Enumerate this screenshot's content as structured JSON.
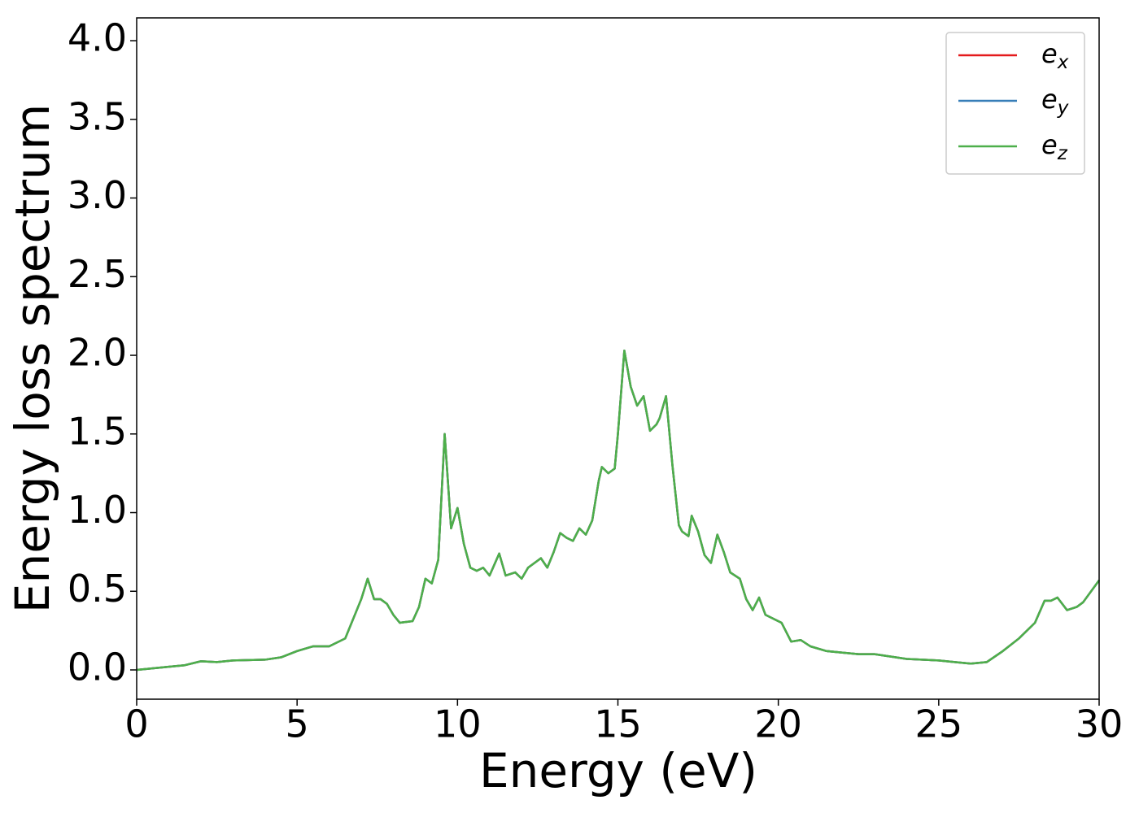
{
  "chart_data": {
    "type": "line",
    "xlabel": "Energy (eV)",
    "ylabel": "Energy loss spectrum",
    "x": [
      0,
      1,
      1.5,
      2,
      2.5,
      3,
      4,
      4.5,
      5,
      5.5,
      6,
      6.5,
      6.8,
      7.0,
      7.2,
      7.4,
      7.6,
      7.8,
      8.0,
      8.2,
      8.6,
      8.8,
      9.0,
      9.2,
      9.4,
      9.6,
      9.8,
      10.0,
      10.2,
      10.4,
      10.6,
      10.8,
      11.0,
      11.3,
      11.5,
      11.8,
      12.0,
      12.2,
      12.6,
      12.8,
      13.0,
      13.2,
      13.4,
      13.6,
      13.8,
      14.0,
      14.2,
      14.4,
      14.5,
      14.7,
      14.9,
      15.0,
      15.2,
      15.4,
      15.6,
      15.8,
      16.0,
      16.2,
      16.3,
      16.5,
      16.7,
      16.9,
      17.0,
      17.2,
      17.3,
      17.5,
      17.7,
      17.9,
      18.1,
      18.3,
      18.5,
      18.8,
      19.0,
      19.2,
      19.4,
      19.6,
      19.9,
      20.1,
      20.4,
      20.7,
      21,
      21.5,
      22,
      22.5,
      23,
      24,
      25,
      25.5,
      26,
      26.5,
      27,
      27.5,
      28,
      28.3,
      28.5,
      28.7,
      29,
      29.3,
      29.5,
      30
    ],
    "series": [
      {
        "name": "e_x",
        "color": "#e41a1c",
        "values": [
          0,
          0.02,
          0.03,
          0.055,
          0.05,
          0.06,
          0.065,
          0.08,
          0.12,
          0.15,
          0.15,
          0.2,
          0.35,
          0.45,
          0.58,
          0.45,
          0.45,
          0.42,
          0.35,
          0.3,
          0.31,
          0.4,
          0.58,
          0.55,
          0.7,
          1.5,
          0.9,
          1.03,
          0.8,
          0.65,
          0.63,
          0.65,
          0.6,
          0.74,
          0.6,
          0.62,
          0.58,
          0.65,
          0.71,
          0.65,
          0.75,
          0.87,
          0.84,
          0.82,
          0.9,
          0.86,
          0.95,
          1.2,
          1.29,
          1.25,
          1.28,
          1.5,
          2.03,
          1.8,
          1.68,
          1.74,
          1.52,
          1.56,
          1.6,
          1.74,
          1.3,
          0.92,
          0.88,
          0.85,
          0.98,
          0.88,
          0.73,
          0.68,
          0.86,
          0.75,
          0.62,
          0.58,
          0.45,
          0.38,
          0.46,
          0.35,
          0.32,
          0.3,
          0.18,
          0.19,
          0.15,
          0.12,
          0.11,
          0.1,
          0.1,
          0.07,
          0.06,
          0.05,
          0.04,
          0.05,
          0.12,
          0.2,
          0.3,
          0.44,
          0.44,
          0.46,
          0.38,
          0.4,
          0.43,
          0.57
        ]
      },
      {
        "name": "e_y",
        "color": "#377eb8",
        "values": [
          0,
          0.02,
          0.03,
          0.055,
          0.05,
          0.06,
          0.065,
          0.08,
          0.12,
          0.15,
          0.15,
          0.2,
          0.35,
          0.45,
          0.58,
          0.45,
          0.45,
          0.42,
          0.35,
          0.3,
          0.31,
          0.4,
          0.58,
          0.55,
          0.7,
          1.5,
          0.9,
          1.03,
          0.8,
          0.65,
          0.63,
          0.65,
          0.6,
          0.74,
          0.6,
          0.62,
          0.58,
          0.65,
          0.71,
          0.65,
          0.75,
          0.87,
          0.84,
          0.82,
          0.9,
          0.86,
          0.95,
          1.2,
          1.29,
          1.25,
          1.28,
          1.5,
          2.03,
          1.8,
          1.68,
          1.74,
          1.52,
          1.56,
          1.6,
          1.74,
          1.3,
          0.92,
          0.88,
          0.85,
          0.98,
          0.88,
          0.73,
          0.68,
          0.86,
          0.75,
          0.62,
          0.58,
          0.45,
          0.38,
          0.46,
          0.35,
          0.32,
          0.3,
          0.18,
          0.19,
          0.15,
          0.12,
          0.11,
          0.1,
          0.1,
          0.07,
          0.06,
          0.05,
          0.04,
          0.05,
          0.12,
          0.2,
          0.3,
          0.44,
          0.44,
          0.46,
          0.38,
          0.4,
          0.43,
          0.57
        ]
      },
      {
        "name": "e_z",
        "color": "#4daf4a",
        "values": [
          0,
          0.02,
          0.03,
          0.055,
          0.05,
          0.06,
          0.065,
          0.08,
          0.12,
          0.15,
          0.15,
          0.2,
          0.35,
          0.45,
          0.58,
          0.45,
          0.45,
          0.42,
          0.35,
          0.3,
          0.31,
          0.4,
          0.58,
          0.55,
          0.7,
          1.5,
          0.9,
          1.03,
          0.8,
          0.65,
          0.63,
          0.65,
          0.6,
          0.74,
          0.6,
          0.62,
          0.58,
          0.65,
          0.71,
          0.65,
          0.75,
          0.87,
          0.84,
          0.82,
          0.9,
          0.86,
          0.95,
          1.2,
          1.29,
          1.25,
          1.28,
          1.5,
          2.03,
          1.8,
          1.68,
          1.74,
          1.52,
          1.56,
          1.6,
          1.74,
          1.3,
          0.92,
          0.88,
          0.85,
          0.98,
          0.88,
          0.73,
          0.68,
          0.86,
          0.75,
          0.62,
          0.58,
          0.45,
          0.38,
          0.46,
          0.35,
          0.32,
          0.3,
          0.18,
          0.19,
          0.15,
          0.12,
          0.11,
          0.1,
          0.1,
          0.07,
          0.06,
          0.05,
          0.04,
          0.05,
          0.12,
          0.2,
          0.3,
          0.44,
          0.44,
          0.46,
          0.38,
          0.4,
          0.43,
          0.57
        ]
      }
    ],
    "xlim": [
      0,
      30
    ],
    "xticks": [
      0,
      5,
      10,
      15,
      20,
      25,
      30
    ],
    "ylim": [
      -0.186,
      4.145
    ],
    "yticks": [
      {
        "value": 0,
        "label": "0.0"
      },
      {
        "value": 0.5,
        "label": "0.5"
      },
      {
        "value": 1,
        "label": "1.0"
      },
      {
        "value": 1.5,
        "label": "1.5"
      },
      {
        "value": 2,
        "label": "2.0"
      },
      {
        "value": 2.5,
        "label": "2.5"
      },
      {
        "value": 3,
        "label": "3.0"
      },
      {
        "value": 3.5,
        "label": "3.5"
      },
      {
        "value": 4,
        "label": "4.0"
      }
    ],
    "grid": false,
    "legend": "upper right"
  }
}
